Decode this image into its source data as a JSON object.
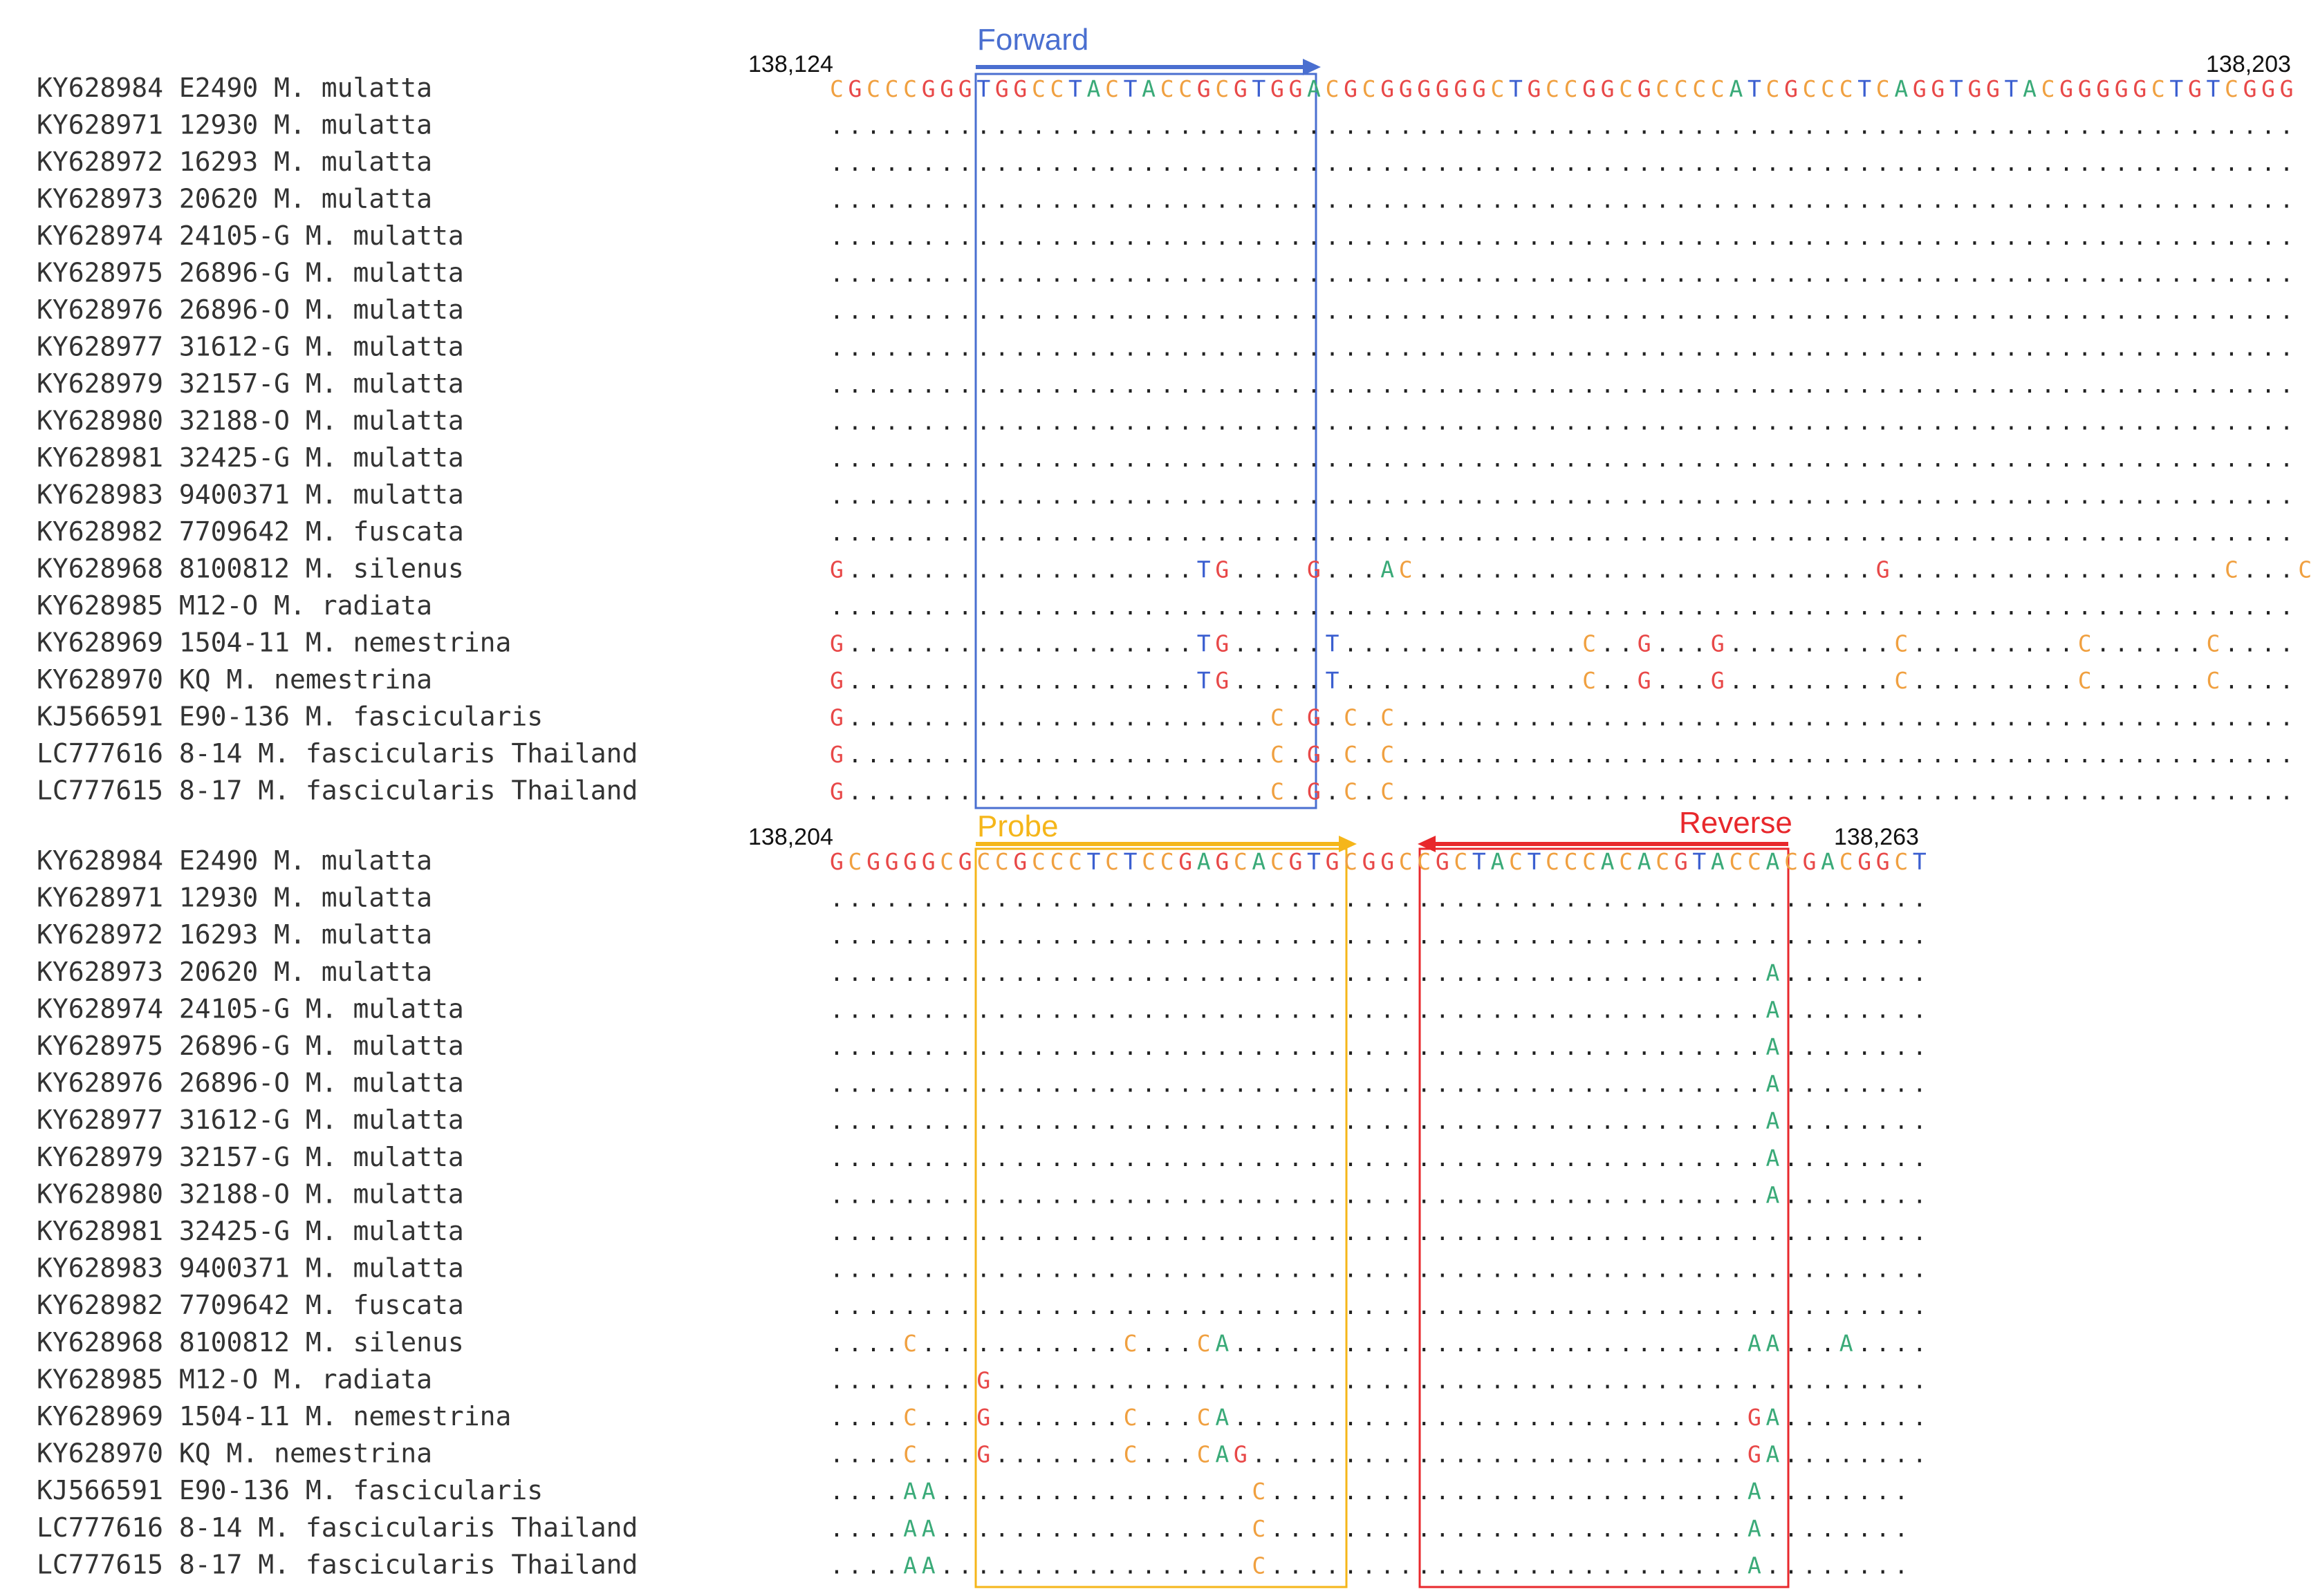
{
  "colors": {
    "A": "#3aaa78",
    "C": "#f0a040",
    "G": "#e84848",
    "T": "#3b5fd0",
    "dot": "#222222",
    "label": "#333333",
    "forward": "#4a6fd0",
    "probe": "#f5b61a",
    "reverse": "#e8282c"
  },
  "blocks": [
    {
      "start_label": "138,124",
      "end_label": "138,203",
      "reference": "CGCCCGGGTGGCCTACTACCGCGTGGACGCGGGGGGCTGCCGGCGCCCCATCGCCCTCAGGTGGTACGGGGGCTGTCGGG",
      "rows": [
        {
          "label": "KY628984 E2490 M. mulatta",
          "seq": ""
        },
        {
          "label": "KY628971 12930 M. mulatta",
          "seq": "................................................................................"
        },
        {
          "label": "KY628972 16293 M. mulatta",
          "seq": "................................................................................"
        },
        {
          "label": "KY628973 20620 M. mulatta",
          "seq": "................................................................................"
        },
        {
          "label": "KY628974 24105-G M. mulatta",
          "seq": "................................................................................"
        },
        {
          "label": "KY628975 26896-G M. mulatta",
          "seq": "................................................................................"
        },
        {
          "label": "KY628976 26896-O M. mulatta",
          "seq": "................................................................................"
        },
        {
          "label": "KY628977 31612-G M. mulatta",
          "seq": "................................................................................"
        },
        {
          "label": "KY628979 32157-G M. mulatta",
          "seq": "................................................................................"
        },
        {
          "label": "KY628980 32188-O M. mulatta",
          "seq": "................................................................................"
        },
        {
          "label": "KY628981 32425-G M. mulatta",
          "seq": "................................................................................"
        },
        {
          "label": "KY628983 9400371 M. mulatta",
          "seq": "................................................................................"
        },
        {
          "label": "KY628982 7709642 M. fuscata",
          "seq": "................................................................................"
        },
        {
          "label": "KY628968 8100812 M. silenus",
          "seq": "G...................TG....G...AC.........................G..................C...C"
        },
        {
          "label": "KY628985 M12-O M. radiata",
          "seq": "................................................................................"
        },
        {
          "label": "KY628969 1504-11 M. nemestrina",
          "seq": "G...................TG.....T.............C..G...G.........C.........C......C...."
        },
        {
          "label": "KY628970 KQ M. nemestrina",
          "seq": "G...................TG.....T.............C..G...G.........C.........C......C...."
        },
        {
          "label": "KJ566591 E90-136 M. fascicularis",
          "seq": "G.......................C.G.C.C................................................."
        },
        {
          "label": "LC777616 8-14 M. fascicularis Thailand",
          "seq": "G.......................C.G.C.C................................................."
        },
        {
          "label": "LC777615 8-17 M. fascicularis Thailand",
          "seq": "G.......................C.G.C.C................................................."
        }
      ]
    },
    {
      "start_label": "138,204",
      "end_label": "138,263",
      "reference": "GCGGGGCGCCGCCCTCTCCGAGCACGTGCGGCCGCTACTCCCACACGTACCACGACGGCT",
      "rows": [
        {
          "label": "KY628984 E2490 M. mulatta",
          "seq": ""
        },
        {
          "label": "KY628971 12930 M. mulatta",
          "seq": "............................................................"
        },
        {
          "label": "KY628972 16293 M. mulatta",
          "seq": "............................................................"
        },
        {
          "label": "KY628973 20620 M. mulatta",
          "seq": "...................................................A........"
        },
        {
          "label": "KY628974 24105-G M. mulatta",
          "seq": "...................................................A........"
        },
        {
          "label": "KY628975 26896-G M. mulatta",
          "seq": "...................................................A........"
        },
        {
          "label": "KY628976 26896-O M. mulatta",
          "seq": "...................................................A........"
        },
        {
          "label": "KY628977 31612-G M. mulatta",
          "seq": "...................................................A........"
        },
        {
          "label": "KY628979 32157-G M. mulatta",
          "seq": "...................................................A........"
        },
        {
          "label": "KY628980 32188-O M. mulatta",
          "seq": "...................................................A........"
        },
        {
          "label": "KY628981 32425-G M. mulatta",
          "seq": "............................................................"
        },
        {
          "label": "KY628983 9400371 M. mulatta",
          "seq": "............................................................"
        },
        {
          "label": "KY628982 7709642 M. fuscata",
          "seq": "............................................................"
        },
        {
          "label": "KY628968 8100812 M. silenus",
          "seq": "....C...........C...CA............................AA...A...."
        },
        {
          "label": "KY628985 M12-O M. radiata",
          "seq": "........G..................................................."
        },
        {
          "label": "KY628969 1504-11 M. nemestrina",
          "seq": "....C...G.......C...CA............................GA........"
        },
        {
          "label": "KY628970 KQ M. nemestrina",
          "seq": "....C...G.......C...CAG...........................GA........"
        },
        {
          "label": "KJ566591 E90-136 M. fascicularis",
          "seq": "....AA.................C..........................A........"
        },
        {
          "label": "LC777616 8-14 M. fascicularis Thailand",
          "seq": "....AA.................C..........................A........"
        },
        {
          "label": "LC777615 8-17 M. fascicularis Thailand",
          "seq": "....AA.................C..........................A........"
        }
      ]
    }
  ],
  "annotations": {
    "forward": "Forward",
    "probe": "Probe",
    "reverse": "Reverse"
  }
}
